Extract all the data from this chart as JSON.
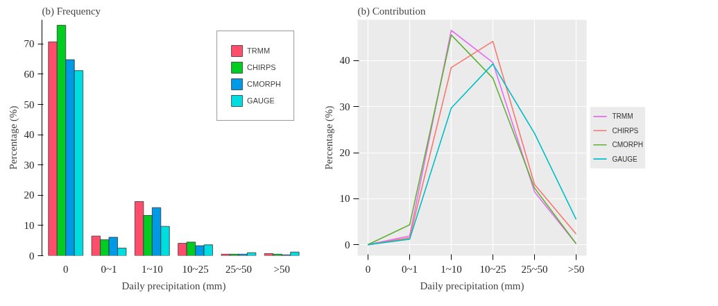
{
  "chart_data": [
    {
      "type": "bar",
      "title": "(b) Frequency",
      "xlabel": "Daily precipitation (mm)",
      "ylabel": "Percentage (%)",
      "categories": [
        "0",
        "0~1",
        "1~10",
        "10~25",
        "25~50",
        ">50"
      ],
      "series": [
        {
          "name": "TRMM",
          "color": "#ff4d6b",
          "values": [
            70.7,
            6.5,
            17.9,
            4.1,
            0.5,
            0.7
          ]
        },
        {
          "name": "CHIRPS",
          "color": "#00cc22",
          "values": [
            76.2,
            5.3,
            13.3,
            4.5,
            0.5,
            0.5
          ]
        },
        {
          "name": "CMORPH",
          "color": "#0099e6",
          "values": [
            64.8,
            6.1,
            15.9,
            3.3,
            0.5,
            0.3
          ]
        },
        {
          "name": "GAUGE",
          "color": "#00dde0",
          "values": [
            61.2,
            2.5,
            9.7,
            3.6,
            1.0,
            1.2
          ]
        }
      ],
      "ylim": [
        0,
        78
      ],
      "yticks": [
        0,
        10,
        20,
        30,
        40,
        50,
        60,
        70
      ],
      "legend": "top right"
    },
    {
      "type": "line",
      "title": "(b) Contribution",
      "xlabel": "Daily precipitation (mm)",
      "ylabel": "Percentage (%)",
      "categories": [
        "0",
        "0~1",
        "1~10",
        "10~25",
        "25~50",
        ">50"
      ],
      "series": [
        {
          "name": "TRMM",
          "color": "#e76bf3",
          "values": [
            0,
            1.9,
            46.6,
            39.6,
            11.5,
            0.2
          ]
        },
        {
          "name": "CHIRPS",
          "color": "#f8766d",
          "values": [
            0,
            1.5,
            38.5,
            44.2,
            13.1,
            2.3
          ]
        },
        {
          "name": "CMORPH",
          "color": "#5fb035",
          "values": [
            0,
            4.3,
            45.6,
            36.2,
            12.3,
            0.2
          ]
        },
        {
          "name": "GAUGE",
          "color": "#00bfc4",
          "values": [
            0,
            1.2,
            29.7,
            39.3,
            24.2,
            5.5
          ]
        }
      ],
      "ylim": [
        -2.4,
        48.9
      ],
      "yticks": [
        0,
        10,
        20,
        30,
        40
      ],
      "grid": true,
      "legend": "right",
      "line_style": "solid",
      "marker": "none"
    }
  ]
}
